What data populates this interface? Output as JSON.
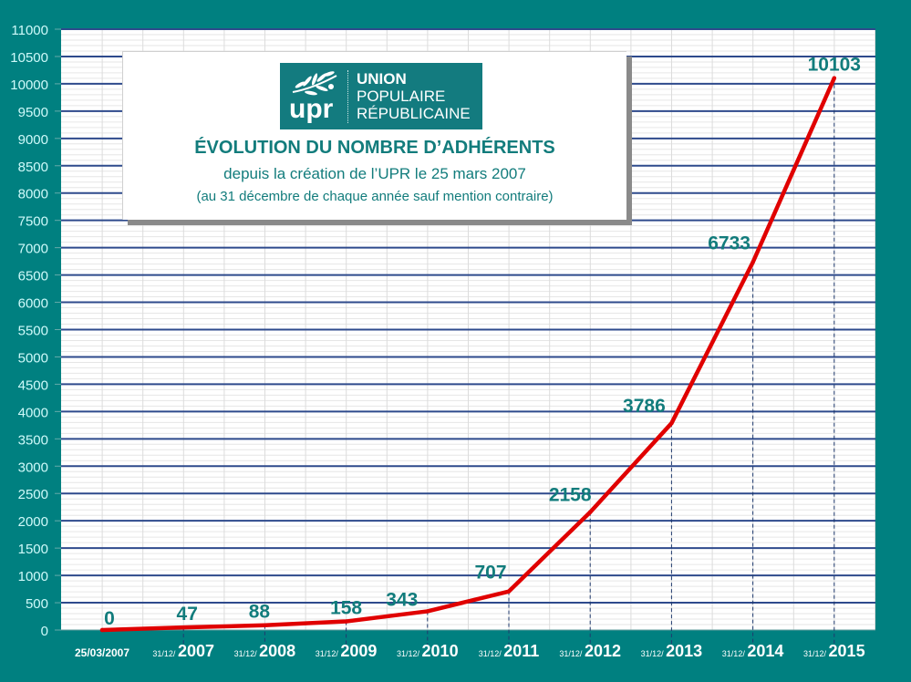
{
  "colors": {
    "background": "#008080",
    "plot_bg": "#ffffff",
    "major_grid": "#2e4a8c",
    "minor_grid": "#dcdcdc",
    "line": "#e00000",
    "label": "#127c7c",
    "tick_label": "#cffafa"
  },
  "title_box": {
    "logo": {
      "mark": "upr",
      "line1": "UNION",
      "line2": "POPULAIRE",
      "line3": "RÉPUBLICAINE",
      "icon": "olive-branch-icon"
    },
    "title": "ÉVOLUTION DU NOMBRE D’ADHÉRENTS",
    "subtitle": "depuis la création de l’UPR le 25 mars 2007",
    "note": "(au 31 décembre de chaque année sauf mention contraire)"
  },
  "chart_data": {
    "type": "line",
    "title": "ÉVOLUTION DU NOMBRE D’ADHÉRENTS",
    "subtitle": "depuis la création de l’UPR le 25 mars 2007",
    "xlabel": "",
    "ylabel": "",
    "ylim": [
      0,
      11000
    ],
    "yticks": [
      0,
      500,
      1000,
      1500,
      2000,
      2500,
      3000,
      3500,
      4000,
      4500,
      5000,
      5500,
      6000,
      6500,
      7000,
      7500,
      8000,
      8500,
      9000,
      9500,
      10000,
      10500,
      11000
    ],
    "grid": true,
    "legend": "none",
    "categories": [
      {
        "prefix": "",
        "main": "25/03/2007"
      },
      {
        "prefix": "31/12/",
        "main": "2007"
      },
      {
        "prefix": "31/12/",
        "main": "2008"
      },
      {
        "prefix": "31/12/",
        "main": "2009"
      },
      {
        "prefix": "31/12/",
        "main": "2010"
      },
      {
        "prefix": "31/12/",
        "main": "2011"
      },
      {
        "prefix": "31/12/",
        "main": "2012"
      },
      {
        "prefix": "31/12/",
        "main": "2013"
      },
      {
        "prefix": "31/12/",
        "main": "2014"
      },
      {
        "prefix": "31/12/",
        "main": "2015"
      }
    ],
    "series": [
      {
        "name": "Adhérents",
        "values": [
          0,
          47,
          88,
          158,
          343,
          707,
          2158,
          3786,
          6733,
          10103
        ]
      }
    ]
  }
}
